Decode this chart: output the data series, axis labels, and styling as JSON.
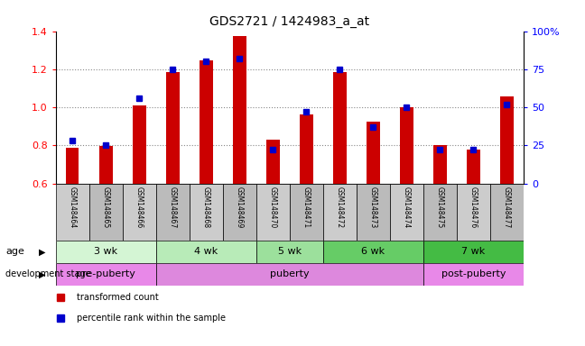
{
  "title": "GDS2721 / 1424983_a_at",
  "samples": [
    "GSM148464",
    "GSM148465",
    "GSM148466",
    "GSM148467",
    "GSM148468",
    "GSM148469",
    "GSM148470",
    "GSM148471",
    "GSM148472",
    "GSM148473",
    "GSM148474",
    "GSM148475",
    "GSM148476",
    "GSM148477"
  ],
  "transformed_count": [
    0.787,
    0.795,
    1.012,
    1.185,
    1.245,
    1.374,
    0.828,
    0.962,
    1.185,
    0.924,
    1.002,
    0.803,
    0.778,
    1.055
  ],
  "percentile_rank": [
    28,
    25,
    56,
    75,
    80,
    82,
    22,
    47,
    75,
    37,
    50,
    22,
    22,
    52
  ],
  "ylim_left": [
    0.6,
    1.4
  ],
  "ylim_right": [
    0,
    100
  ],
  "left_ticks": [
    0.6,
    0.8,
    1.0,
    1.2,
    1.4
  ],
  "right_ticks": [
    0,
    25,
    50,
    75,
    100
  ],
  "right_tick_labels": [
    "0",
    "25",
    "50",
    "75",
    "100%"
  ],
  "age_groups": [
    {
      "label": "3 wk",
      "start": 0,
      "end": 3,
      "color": "#d4f5d4"
    },
    {
      "label": "4 wk",
      "start": 3,
      "end": 6,
      "color": "#b8ebb8"
    },
    {
      "label": "5 wk",
      "start": 6,
      "end": 8,
      "color": "#9ce09c"
    },
    {
      "label": "6 wk",
      "start": 8,
      "end": 11,
      "color": "#66cc66"
    },
    {
      "label": "7 wk",
      "start": 11,
      "end": 14,
      "color": "#44bb44"
    }
  ],
  "dev_groups": [
    {
      "label": "pre-puberty",
      "start": 0,
      "end": 3,
      "color": "#e888e8"
    },
    {
      "label": "puberty",
      "start": 3,
      "end": 11,
      "color": "#dd88dd"
    },
    {
      "label": "post-puberty",
      "start": 11,
      "end": 14,
      "color": "#e888e8"
    }
  ],
  "bar_color": "#cc0000",
  "dot_color": "#0000cc",
  "baseline": 0.6,
  "bar_width": 0.4,
  "gridlines": [
    0.8,
    1.0,
    1.2
  ],
  "grid_color": "#888888",
  "label_row_colors": [
    "#cccccc",
    "#bbbbbb"
  ],
  "age_label": "age",
  "dev_label": "development stage",
  "legend_items": [
    {
      "label": "transformed count",
      "color": "#cc0000"
    },
    {
      "label": "percentile rank within the sample",
      "color": "#0000cc"
    }
  ]
}
